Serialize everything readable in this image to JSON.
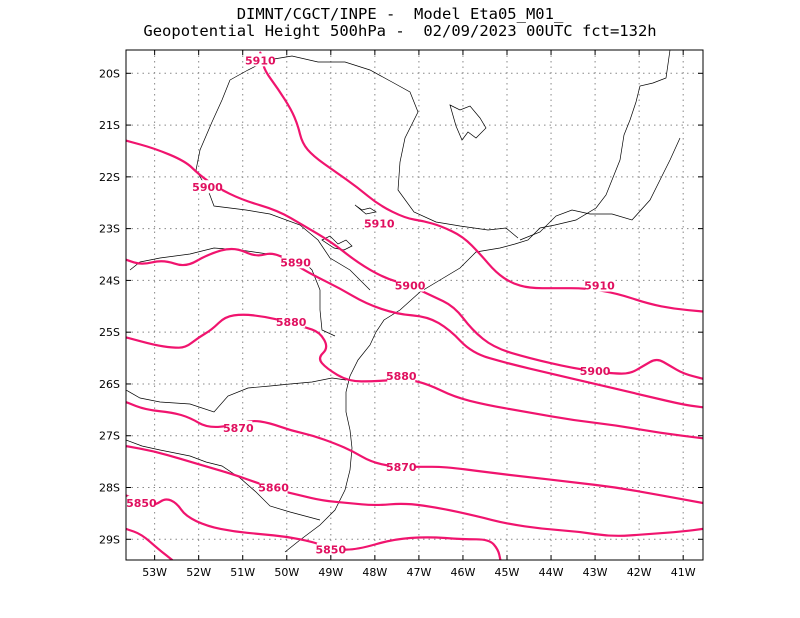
{
  "title": {
    "line1": "DIMNT/CGCT/INPE -  Model Eta05_M01_",
    "line2": "Geopotential Height 500hPa -  02/09/2023 00UTC fct=132h"
  },
  "map": {
    "lon_range": [
      -53.65,
      -40.55
    ],
    "lat_range": [
      -29.4,
      -19.55
    ],
    "lon_ticks": [
      -53,
      -52,
      -51,
      -50,
      -49,
      -48,
      -47,
      -46,
      -45,
      -44,
      -43,
      -42,
      -41
    ],
    "lat_ticks": [
      -20,
      -21,
      -22,
      -23,
      -24,
      -25,
      -26,
      -27,
      -28,
      -29
    ],
    "lon_tick_labels": [
      "53W",
      "52W",
      "51W",
      "50W",
      "49W",
      "48W",
      "47W",
      "46W",
      "45W",
      "44W",
      "43W",
      "42W",
      "41W"
    ],
    "lat_tick_labels": [
      "20S",
      "21S",
      "22S",
      "23S",
      "24S",
      "25S",
      "26S",
      "27S",
      "28S",
      "29S"
    ],
    "grid": true,
    "contour_color": "#f0146e"
  },
  "contours": [
    {
      "value": 5910,
      "label": "5910",
      "labels": [
        [
          -50.6,
          -19.75
        ],
        [
          -47.9,
          -22.9
        ],
        [
          -42.9,
          -24.1
        ]
      ],
      "points": [
        [
          -50.6,
          -19.6
        ],
        [
          -50.55,
          -19.75
        ],
        [
          -50.5,
          -19.95
        ],
        [
          -50.2,
          -20.3
        ],
        [
          -49.9,
          -20.7
        ],
        [
          -49.75,
          -21.0
        ],
        [
          -49.65,
          -21.35
        ],
        [
          -49.4,
          -21.6
        ],
        [
          -48.9,
          -21.9
        ],
        [
          -48.4,
          -22.2
        ],
        [
          -47.9,
          -22.55
        ],
        [
          -47.3,
          -22.8
        ],
        [
          -46.9,
          -22.85
        ],
        [
          -46.5,
          -22.95
        ],
        [
          -46.0,
          -23.15
        ],
        [
          -45.6,
          -23.5
        ],
        [
          -45.25,
          -23.85
        ],
        [
          -44.9,
          -24.05
        ],
        [
          -44.5,
          -24.15
        ],
        [
          -43.9,
          -24.15
        ],
        [
          -43.2,
          -24.15
        ],
        [
          -42.5,
          -24.25
        ],
        [
          -41.8,
          -24.45
        ],
        [
          -41.2,
          -24.55
        ],
        [
          -40.55,
          -24.6
        ]
      ]
    },
    {
      "value": 5900,
      "label": "5900",
      "labels": [
        [
          -51.8,
          -22.2
        ],
        [
          -47.2,
          -24.1
        ],
        [
          -43.0,
          -25.75
        ]
      ],
      "points": [
        [
          -53.65,
          -21.3
        ],
        [
          -53.0,
          -21.45
        ],
        [
          -52.3,
          -21.7
        ],
        [
          -52.0,
          -21.95
        ],
        [
          -51.6,
          -22.2
        ],
        [
          -51.0,
          -22.45
        ],
        [
          -50.2,
          -22.65
        ],
        [
          -49.6,
          -22.95
        ],
        [
          -49.0,
          -23.25
        ],
        [
          -48.4,
          -23.65
        ],
        [
          -47.8,
          -23.95
        ],
        [
          -47.2,
          -24.1
        ],
        [
          -46.7,
          -24.3
        ],
        [
          -46.2,
          -24.5
        ],
        [
          -45.8,
          -24.95
        ],
        [
          -45.3,
          -25.3
        ],
        [
          -44.5,
          -25.5
        ],
        [
          -43.5,
          -25.7
        ],
        [
          -42.6,
          -25.8
        ],
        [
          -42.2,
          -25.8
        ],
        [
          -41.9,
          -25.65
        ],
        [
          -41.6,
          -25.5
        ],
        [
          -41.3,
          -25.65
        ],
        [
          -41.0,
          -25.8
        ],
        [
          -40.55,
          -25.9
        ]
      ]
    },
    {
      "value": 5890,
      "label": "5890",
      "labels": [
        [
          -49.8,
          -23.65
        ]
      ],
      "points": [
        [
          -53.65,
          -23.6
        ],
        [
          -53.3,
          -23.7
        ],
        [
          -52.8,
          -23.6
        ],
        [
          -52.3,
          -23.75
        ],
        [
          -51.8,
          -23.5
        ],
        [
          -51.2,
          -23.35
        ],
        [
          -50.7,
          -23.55
        ],
        [
          -50.3,
          -23.45
        ],
        [
          -49.8,
          -23.7
        ],
        [
          -49.4,
          -23.9
        ],
        [
          -48.8,
          -24.15
        ],
        [
          -48.2,
          -24.45
        ],
        [
          -47.5,
          -24.65
        ],
        [
          -46.8,
          -24.7
        ],
        [
          -46.3,
          -24.95
        ],
        [
          -45.8,
          -25.4
        ],
        [
          -45.0,
          -25.6
        ],
        [
          -44.0,
          -25.8
        ],
        [
          -43.0,
          -26.0
        ],
        [
          -42.0,
          -26.2
        ],
        [
          -41.0,
          -26.4
        ],
        [
          -40.55,
          -26.45
        ]
      ]
    },
    {
      "value": 5880,
      "label": "5880",
      "labels": [
        [
          -49.9,
          -24.8
        ],
        [
          -47.4,
          -25.85
        ]
      ],
      "points": [
        [
          -53.65,
          -25.1
        ],
        [
          -53.0,
          -25.25
        ],
        [
          -52.6,
          -25.3
        ],
        [
          -52.3,
          -25.3
        ],
        [
          -52.0,
          -25.1
        ],
        [
          -51.7,
          -24.95
        ],
        [
          -51.4,
          -24.7
        ],
        [
          -51.0,
          -24.65
        ],
        [
          -50.5,
          -24.7
        ],
        [
          -50.0,
          -24.8
        ],
        [
          -49.6,
          -24.9
        ],
        [
          -49.25,
          -25.0
        ],
        [
          -49.05,
          -25.3
        ],
        [
          -49.3,
          -25.5
        ],
        [
          -49.1,
          -25.7
        ],
        [
          -48.6,
          -25.95
        ],
        [
          -48.0,
          -25.95
        ],
        [
          -47.3,
          -25.9
        ],
        [
          -46.8,
          -26.0
        ],
        [
          -46.2,
          -26.25
        ],
        [
          -45.5,
          -26.4
        ],
        [
          -44.5,
          -26.55
        ],
        [
          -43.5,
          -26.7
        ],
        [
          -42.5,
          -26.8
        ],
        [
          -41.5,
          -26.95
        ],
        [
          -40.55,
          -27.05
        ]
      ]
    },
    {
      "value": 5870,
      "label": "5870",
      "labels": [
        [
          -51.1,
          -26.85
        ],
        [
          -47.4,
          -27.6
        ]
      ],
      "points": [
        [
          -53.65,
          -26.35
        ],
        [
          -53.2,
          -26.5
        ],
        [
          -52.6,
          -26.55
        ],
        [
          -52.2,
          -26.65
        ],
        [
          -51.8,
          -26.85
        ],
        [
          -51.2,
          -26.8
        ],
        [
          -50.8,
          -26.7
        ],
        [
          -50.4,
          -26.75
        ],
        [
          -49.9,
          -26.9
        ],
        [
          -49.4,
          -27.0
        ],
        [
          -48.9,
          -27.15
        ],
        [
          -48.5,
          -27.3
        ],
        [
          -48.1,
          -27.5
        ],
        [
          -47.6,
          -27.6
        ],
        [
          -47.0,
          -27.6
        ],
        [
          -46.4,
          -27.6
        ],
        [
          -45.5,
          -27.7
        ],
        [
          -44.5,
          -27.8
        ],
        [
          -43.5,
          -27.9
        ],
        [
          -42.5,
          -28.0
        ],
        [
          -41.5,
          -28.15
        ],
        [
          -40.55,
          -28.3
        ]
      ]
    },
    {
      "value": 5860,
      "label": "5860",
      "labels": [
        [
          -50.3,
          -28.0
        ]
      ],
      "points": [
        [
          -53.65,
          -27.2
        ],
        [
          -53.0,
          -27.3
        ],
        [
          -52.4,
          -27.45
        ],
        [
          -51.8,
          -27.6
        ],
        [
          -51.2,
          -27.75
        ],
        [
          -50.7,
          -27.9
        ],
        [
          -50.2,
          -28.05
        ],
        [
          -49.7,
          -28.15
        ],
        [
          -49.2,
          -28.25
        ],
        [
          -48.6,
          -28.3
        ],
        [
          -48.0,
          -28.35
        ],
        [
          -47.3,
          -28.3
        ],
        [
          -46.5,
          -28.4
        ],
        [
          -45.7,
          -28.55
        ],
        [
          -45.0,
          -28.7
        ],
        [
          -44.2,
          -28.8
        ],
        [
          -43.4,
          -28.85
        ],
        [
          -42.6,
          -28.95
        ],
        [
          -41.8,
          -28.9
        ],
        [
          -41.0,
          -28.85
        ],
        [
          -40.55,
          -28.8
        ]
      ]
    },
    {
      "value": 5850,
      "label": "5850",
      "labels": [
        [
          -53.3,
          -28.3
        ],
        [
          -49.0,
          -29.2
        ]
      ],
      "points": [
        [
          -53.65,
          -28.15
        ],
        [
          -53.3,
          -28.3
        ],
        [
          -53.0,
          -28.35
        ],
        [
          -52.75,
          -28.2
        ],
        [
          -52.5,
          -28.3
        ],
        [
          -52.3,
          -28.55
        ],
        [
          -51.8,
          -28.75
        ],
        [
          -51.2,
          -28.85
        ],
        [
          -50.6,
          -28.9
        ],
        [
          -50.0,
          -28.95
        ],
        [
          -49.4,
          -29.05
        ],
        [
          -48.9,
          -29.2
        ],
        [
          -48.4,
          -29.2
        ],
        [
          -47.6,
          -29.0
        ],
        [
          -46.8,
          -28.95
        ],
        [
          -46.0,
          -29.0
        ],
        [
          -45.4,
          -29.0
        ],
        [
          -45.2,
          -29.2
        ],
        [
          -45.15,
          -29.4
        ]
      ]
    },
    {
      "value": 5850,
      "label": "",
      "labels": [],
      "points": [
        [
          -53.65,
          -28.8
        ],
        [
          -53.3,
          -28.9
        ],
        [
          -52.9,
          -29.2
        ],
        [
          -52.6,
          -29.4
        ]
      ]
    }
  ]
}
